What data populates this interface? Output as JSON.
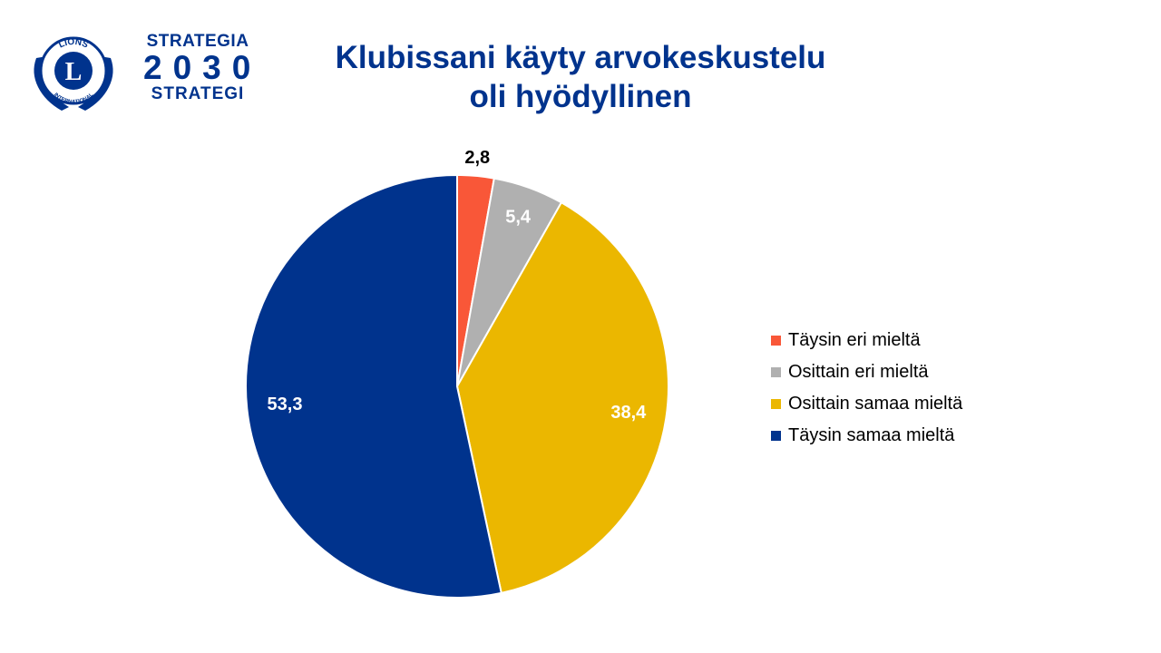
{
  "header": {
    "logo_line1": "STRATEGIA",
    "logo_year": "2030",
    "logo_line2": "STRATEGI",
    "lions_emblem_text_top": "LIONS",
    "lions_emblem_letter": "L",
    "lions_emblem_text_bottom": "INTERNATIONAL",
    "title_line1": "Klubissani käyty arvokeskustelu",
    "title_line2": "oli hyödyllinen"
  },
  "colors": {
    "brand_blue": "#00338d",
    "slice_red": "#f95738",
    "slice_gray": "#b0b0b0",
    "slice_gold": "#ebb700",
    "slice_blue": "#00338d"
  },
  "chart_data": {
    "type": "pie",
    "title": "Klubissani käyty arvokeskustelu oli hyödyllinen",
    "categories": [
      "Täysin eri mieltä",
      "Osittain eri mieltä",
      "Osittain samaa mieltä",
      "Täysin samaa mieltä"
    ],
    "values": [
      2.8,
      5.4,
      38.4,
      53.3
    ],
    "value_labels": [
      "2,8",
      "5,4",
      "38,4",
      "53,3"
    ],
    "colors": [
      "#f95738",
      "#b0b0b0",
      "#ebb700",
      "#00338d"
    ],
    "legend_position": "right"
  }
}
